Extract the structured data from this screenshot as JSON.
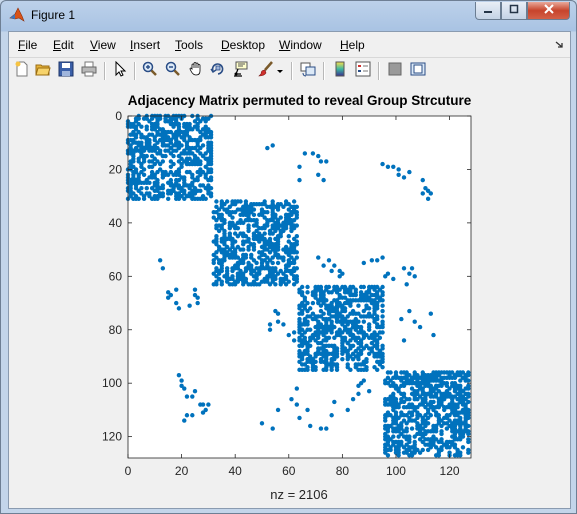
{
  "window": {
    "title": "Figure 1"
  },
  "menu": {
    "items": [
      {
        "label": "File",
        "u": "F",
        "rest": "ile"
      },
      {
        "label": "Edit",
        "u": "E",
        "rest": "dit"
      },
      {
        "label": "View",
        "u": "V",
        "rest": "iew"
      },
      {
        "label": "Insert",
        "u": "I",
        "rest": "nsert"
      },
      {
        "label": "Tools",
        "u": "T",
        "rest": "ools"
      },
      {
        "label": "Desktop",
        "u": "D",
        "rest": "esktop"
      },
      {
        "label": "Window",
        "u": "W",
        "rest": "indow"
      },
      {
        "label": "Help",
        "u": "H",
        "rest": "elp"
      }
    ]
  },
  "toolbar": {
    "icons": [
      "new-figure-icon",
      "open-file-icon",
      "save-icon",
      "print-icon",
      "edit-plot-arrow-icon",
      "zoom-in-icon",
      "zoom-out-icon",
      "pan-hand-icon",
      "rotate-3d-icon",
      "data-cursor-icon",
      "brush-icon",
      "brush-dropdown-icon",
      "link-plot-icon",
      "insert-colorbar-icon",
      "insert-legend-icon",
      "hide-plot-tools-icon",
      "show-plot-tools-icon"
    ]
  },
  "chart_data": {
    "type": "scatter",
    "title": "Adjacency Matrix permuted to reveal Group Strcuture",
    "xlabel": "nz = 2106",
    "ylabel": "",
    "xlim": [
      0,
      128
    ],
    "ylim": [
      128,
      0
    ],
    "xticks": [
      0,
      20,
      40,
      60,
      80,
      100,
      120
    ],
    "yticks": [
      0,
      20,
      40,
      60,
      80,
      100,
      120
    ],
    "marker_color": "#0072bd",
    "nz": 2106,
    "dense_blocks": [
      {
        "rows": [
          0,
          31
        ],
        "cols": [
          0,
          31
        ],
        "density": 0.5
      },
      {
        "rows": [
          32,
          63
        ],
        "cols": [
          32,
          63
        ],
        "density": 0.5
      },
      {
        "rows": [
          64,
          95
        ],
        "cols": [
          64,
          95
        ],
        "density": 0.5
      },
      {
        "rows": [
          96,
          127
        ],
        "cols": [
          96,
          127
        ],
        "density": 0.5
      }
    ],
    "sparse_points": [
      [
        52,
        12
      ],
      [
        54,
        11
      ],
      [
        66,
        14
      ],
      [
        69,
        14
      ],
      [
        71,
        15
      ],
      [
        72,
        17
      ],
      [
        74,
        17
      ],
      [
        64,
        19
      ],
      [
        64,
        24
      ],
      [
        71,
        22
      ],
      [
        73,
        24
      ],
      [
        95,
        18
      ],
      [
        97,
        19
      ],
      [
        99,
        19
      ],
      [
        101,
        22
      ],
      [
        101,
        20
      ],
      [
        103,
        23
      ],
      [
        105,
        21
      ],
      [
        110,
        24
      ],
      [
        111,
        27
      ],
      [
        112,
        28
      ],
      [
        113,
        29
      ],
      [
        110,
        29
      ],
      [
        112,
        31
      ],
      [
        12,
        54
      ],
      [
        13,
        57
      ],
      [
        15,
        66
      ],
      [
        15,
        68
      ],
      [
        16,
        67
      ],
      [
        18,
        65
      ],
      [
        18,
        70
      ],
      [
        19,
        72
      ],
      [
        25,
        65
      ],
      [
        25,
        67
      ],
      [
        26,
        68
      ],
      [
        26,
        70
      ],
      [
        23,
        71
      ],
      [
        71,
        53
      ],
      [
        73,
        56
      ],
      [
        75,
        54
      ],
      [
        76,
        58
      ],
      [
        77,
        56
      ],
      [
        79,
        58
      ],
      [
        79,
        60
      ],
      [
        80,
        59
      ],
      [
        88,
        55
      ],
      [
        91,
        54
      ],
      [
        93,
        54
      ],
      [
        95,
        53
      ],
      [
        96,
        60
      ],
      [
        97,
        59
      ],
      [
        99,
        61
      ],
      [
        103,
        57
      ],
      [
        105,
        59
      ],
      [
        106,
        57
      ],
      [
        107,
        60
      ],
      [
        104,
        63
      ],
      [
        55,
        73
      ],
      [
        56,
        74
      ],
      [
        56,
        77
      ],
      [
        58,
        78
      ],
      [
        62,
        81
      ],
      [
        60,
        82
      ],
      [
        62,
        84
      ],
      [
        53,
        80
      ],
      [
        53,
        78
      ],
      [
        102,
        76
      ],
      [
        105,
        73
      ],
      [
        107,
        77
      ],
      [
        109,
        79
      ],
      [
        113,
        74
      ],
      [
        114,
        82
      ],
      [
        103,
        84
      ],
      [
        19,
        97
      ],
      [
        20,
        99
      ],
      [
        20,
        101
      ],
      [
        21,
        102
      ],
      [
        22,
        105
      ],
      [
        24,
        105
      ],
      [
        25,
        103
      ],
      [
        27,
        108
      ],
      [
        28,
        108
      ],
      [
        29,
        110
      ],
      [
        30,
        108
      ],
      [
        28,
        111
      ],
      [
        24,
        112
      ],
      [
        21,
        114
      ],
      [
        22,
        112
      ],
      [
        50,
        115
      ],
      [
        54,
        117
      ],
      [
        56,
        110
      ],
      [
        61,
        106
      ],
      [
        63,
        102
      ],
      [
        63,
        108
      ],
      [
        64,
        113
      ],
      [
        67,
        110
      ],
      [
        68,
        116
      ],
      [
        72,
        117
      ],
      [
        74,
        117
      ],
      [
        76,
        112
      ],
      [
        77,
        107
      ],
      [
        82,
        110
      ],
      [
        84,
        106
      ],
      [
        86,
        104
      ],
      [
        86,
        101
      ],
      [
        87,
        100
      ],
      [
        88,
        99
      ],
      [
        90,
        103
      ]
    ]
  }
}
